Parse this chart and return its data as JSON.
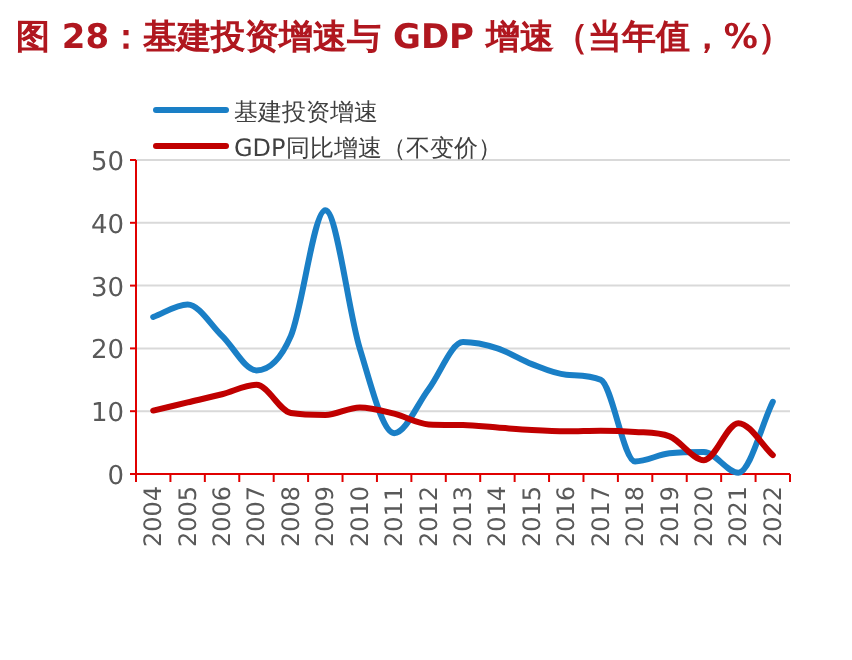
{
  "chart_data": {
    "type": "line",
    "title": "图 28：基建投资增速与 GDP 增速（当年值，%）",
    "categories": [
      "2004",
      "2005",
      "2006",
      "2007",
      "2008",
      "2009",
      "2010",
      "2011",
      "2012",
      "2013",
      "2014",
      "2015",
      "2016",
      "2017",
      "2018",
      "2019",
      "2020",
      "2021",
      "2022"
    ],
    "series": [
      {
        "name": "基建投资增速",
        "color": "#1a7fc6",
        "values": [
          25,
          27,
          22,
          16.5,
          22,
          42,
          20,
          6.5,
          13.5,
          21,
          20,
          17.5,
          15.8,
          15,
          2,
          3.3,
          3.5,
          0.2,
          11.5
        ]
      },
      {
        "name": "GDP同比增速（不变价）",
        "color": "#c00000",
        "values": [
          10.1,
          11.4,
          12.7,
          14.2,
          9.7,
          9.4,
          10.6,
          9.6,
          7.9,
          7.8,
          7.4,
          7,
          6.8,
          6.9,
          6.7,
          6,
          2.2,
          8.1,
          3
        ]
      }
    ],
    "ylim": [
      0,
      50
    ],
    "yticks": [
      0,
      10,
      20,
      30,
      40,
      50
    ],
    "grid": "y",
    "legend": "top left",
    "marker": "none",
    "line_style": "solid"
  }
}
